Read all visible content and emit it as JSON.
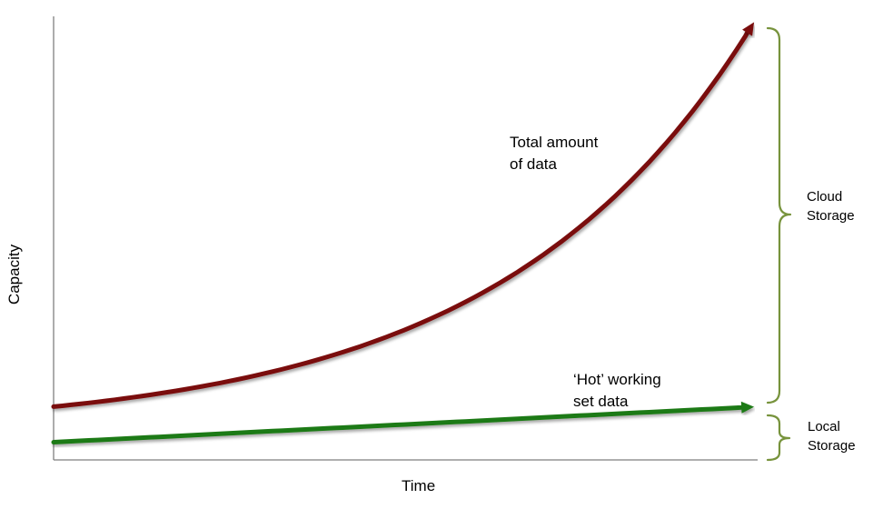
{
  "chart_data": {
    "type": "line",
    "title": "",
    "xlabel": "Time",
    "ylabel": "Capacity",
    "grid": false,
    "legend": "none",
    "axis_ticks": false,
    "series": [
      {
        "label_lines": [
          "Total amount",
          "of data"
        ],
        "color": "#7a0b0b",
        "shape": "exponential",
        "relative_start": 0.12,
        "relative_end": 1.0
      },
      {
        "label_lines": [
          "‘Hot’ working",
          "set data"
        ],
        "color": "#1f7a14",
        "shape": "linear",
        "relative_start": 0.04,
        "relative_end": 0.12
      }
    ],
    "brackets": [
      {
        "label_lines": [
          "Cloud",
          "Storage"
        ],
        "color": "#77933c"
      },
      {
        "label_lines": [
          "Local",
          "Storage"
        ],
        "color": "#77933c"
      }
    ],
    "axis_color": "#7f7f7f"
  }
}
